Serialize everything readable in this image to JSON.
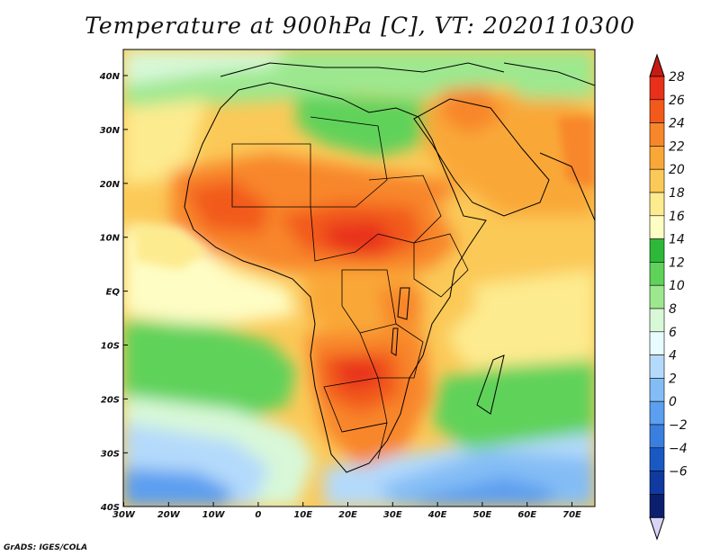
{
  "title": "Temperature at 900hPa [C], VT: 2020110300",
  "credit": "GrADS: IGES/COLA",
  "lon_labels": [
    "30W",
    "20W",
    "10W",
    "0",
    "10E",
    "20E",
    "30E",
    "40E",
    "50E",
    "60E",
    "70E"
  ],
  "lat_labels": [
    "40N",
    "30N",
    "20N",
    "10N",
    "EQ",
    "10S",
    "20S",
    "30S",
    "40S"
  ],
  "colorbar": {
    "labels": [
      "28",
      "26",
      "24",
      "22",
      "20",
      "18",
      "16",
      "14",
      "12",
      "10",
      "8",
      "6",
      "4",
      "2",
      "0",
      "−2",
      "−4",
      "−6"
    ],
    "colors": [
      "#e8301a",
      "#f25a1c",
      "#f8862a",
      "#f9a838",
      "#fbc957",
      "#fdeb8f",
      "#fefdc4",
      "#2eb83a",
      "#5fd25a",
      "#9de88f",
      "#d8f8d8",
      "#e8fcff",
      "#b4dafb",
      "#84bdf5",
      "#5c9ef0",
      "#3a7fe0",
      "#1a59c4",
      "#0f3aa0",
      "#0c1f6e"
    ],
    "top_arrow": "#c81a14",
    "bottom_arrow": "#d8d4f8"
  }
}
